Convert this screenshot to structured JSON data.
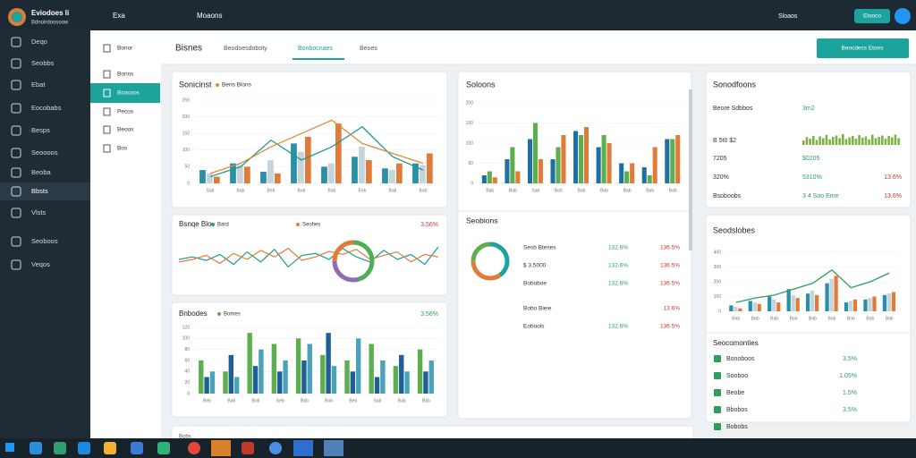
{
  "topbar": {
    "app_name": "Eviodoes li",
    "app_sub": "Bdnolrdoosoow",
    "menu1": "Exa",
    "menu2": "Moaons",
    "user": "Sloaos",
    "button": "Elooco"
  },
  "sidebar": {
    "items": [
      "Deqo",
      "Seobbs",
      "Ebat",
      "Eocobabs",
      "Besps",
      "Seoooos",
      "Beoba",
      "Bbsts",
      "Vlsts",
      "Seoboos",
      "Veqos"
    ],
    "active": 7
  },
  "subnav": {
    "items": [
      "Bonor",
      "Bonos",
      "Bcocoos",
      "Pecos",
      "Beoos",
      "Bos"
    ],
    "active": 2
  },
  "header": {
    "title": "Bisnes",
    "tabs": [
      "Beodoesdoboty",
      "Bonbocnaes",
      "Beoes"
    ],
    "active_tab": 1,
    "button": "Beocdecs Etons"
  },
  "card_a": {
    "title": "Sonicinst",
    "chart": {
      "type": "bar",
      "ylim": [
        0,
        250
      ],
      "yticks": [
        0,
        50,
        100,
        150,
        200,
        250
      ],
      "categories": [
        "Sab",
        "Bab",
        "Beb",
        "Bob",
        "Bab",
        "Eeb",
        "Bab",
        "Bab"
      ],
      "series": [
        {
          "color": "#2a8fa8",
          "values": [
            40,
            60,
            35,
            120,
            50,
            80,
            45,
            60
          ]
        },
        {
          "color": "#c5d3dc",
          "values": [
            30,
            55,
            70,
            95,
            60,
            110,
            40,
            55
          ]
        },
        {
          "color": "#e07b39",
          "values": [
            20,
            50,
            30,
            140,
            180,
            70,
            60,
            90
          ]
        }
      ],
      "lines": [
        {
          "color": "#1f9a8e",
          "values": [
            20,
            50,
            130,
            70,
            110,
            170,
            80,
            40
          ]
        },
        {
          "name": "Bens Blons",
          "color": "#e08a3a",
          "values": [
            30,
            60,
            110,
            150,
            190,
            120,
            90,
            60
          ]
        }
      ]
    }
  },
  "card_b": {
    "title": "Bsnqe Blo",
    "legend": [
      "Bard",
      "Seohes"
    ],
    "badge": "3.56%",
    "chart": {
      "type": "line",
      "ylim": [
        0,
        100
      ],
      "lines": [
        {
          "color": "#1f9a8e",
          "values": [
            50,
            55,
            48,
            60,
            40,
            65,
            45,
            70,
            35,
            58,
            62,
            50,
            72,
            55,
            45,
            68,
            50,
            60,
            40,
            75
          ]
        },
        {
          "color": "#e07b39",
          "values": [
            45,
            50,
            58,
            42,
            62,
            50,
            68,
            55,
            72,
            48,
            55,
            66,
            60,
            70,
            50,
            58,
            65,
            45,
            60,
            55
          ]
        }
      ]
    },
    "donut": {
      "values": [
        45,
        30,
        25
      ],
      "colors": [
        "#4caf50",
        "#8e6fb5",
        "#e07b39"
      ]
    }
  },
  "card_c": {
    "title": "Bnbodes",
    "legend": "Bomes",
    "badge": "3.56%",
    "chart": {
      "type": "bar",
      "ylim": [
        0,
        120
      ],
      "yticks": [
        0,
        20,
        40,
        60,
        80,
        100,
        120
      ],
      "categories": [
        "Beb",
        "Bab",
        "Bob",
        "Seb",
        "Bab",
        "Bob",
        "Beb",
        "Sab",
        "Bab",
        "Bab"
      ],
      "series": [
        {
          "color": "#5cae4f",
          "values": [
            60,
            40,
            110,
            90,
            100,
            70,
            60,
            90,
            50,
            80
          ]
        },
        {
          "color": "#1f5f95",
          "values": [
            30,
            70,
            50,
            40,
            60,
            110,
            40,
            30,
            70,
            40
          ]
        },
        {
          "color": "#4aa3b8",
          "values": [
            40,
            30,
            80,
            60,
            90,
            50,
            100,
            60,
            40,
            60
          ]
        }
      ]
    }
  },
  "card_d": {
    "title": "Soloons",
    "chart": {
      "type": "bar",
      "ylim": [
        0,
        200
      ],
      "yticks": [
        0,
        50,
        100,
        150,
        200
      ],
      "categories": [
        "Bab",
        "Bab",
        "Sab",
        "Bob",
        "Bab",
        "Bab",
        "Bab",
        "Bab",
        "Bab"
      ],
      "series": [
        {
          "color": "#1f6fa5",
          "values": [
            20,
            60,
            110,
            60,
            130,
            90,
            50,
            40,
            110
          ]
        },
        {
          "color": "#5cae4f",
          "values": [
            30,
            90,
            150,
            90,
            120,
            120,
            30,
            20,
            110
          ]
        },
        {
          "color": "#e07b39",
          "values": [
            15,
            30,
            60,
            120,
            140,
            100,
            50,
            90,
            120
          ]
        }
      ]
    },
    "list_title": "Seobions",
    "donut": {
      "values": [
        40,
        35,
        25
      ],
      "colors": [
        "#1ba39c",
        "#e07b39",
        "#5cae4f"
      ]
    },
    "rows": [
      [
        "Sesb Bteses",
        "132.6%",
        "136.5%"
      ],
      [
        "$ 3.5000",
        "132.6%",
        "136.5%"
      ],
      [
        "Boboboe",
        "132.6%",
        "136.5%"
      ],
      [
        "Bobo Bieie",
        "",
        "13.6%"
      ],
      [
        "Eobools",
        "132.6%",
        "136.5%"
      ]
    ]
  },
  "card_e": {
    "title": "Sonodfoons",
    "rows": [
      [
        "Beore Sdbbos",
        "3m2"
      ],
      [
        "B 5t0 $2",
        ""
      ],
      [
        "7205",
        "$0205"
      ],
      [
        "320%",
        "5310%",
        "13.6%"
      ],
      [
        "Bsoboobs",
        "3 4 Soo Eme",
        "13.6%"
      ]
    ],
    "spark": {
      "color": "#7cb342",
      "values": [
        20,
        35,
        28,
        40,
        22,
        38,
        30,
        45,
        25,
        36,
        42,
        30,
        48,
        26,
        34,
        40,
        28,
        44,
        32,
        38,
        24,
        46,
        30,
        36,
        42,
        28,
        40,
        34,
        46,
        30
      ]
    }
  },
  "card_f": {
    "title": "Seodslobes",
    "chart": {
      "type": "bar",
      "ylim": [
        0,
        400
      ],
      "yticks": [
        0,
        100,
        200,
        300,
        400
      ],
      "categories": [
        "Bab",
        "Bab",
        "Bab",
        "Bob",
        "Bab",
        "Bab",
        "Bob",
        "Bab",
        "Bab"
      ],
      "series": [
        {
          "color": "#2a8fa8",
          "values": [
            40,
            70,
            100,
            150,
            120,
            190,
            60,
            80,
            110
          ]
        },
        {
          "color": "#c5d3dc",
          "values": [
            30,
            60,
            80,
            110,
            140,
            220,
            70,
            90,
            120
          ]
        },
        {
          "color": "#e07b39",
          "values": [
            20,
            50,
            60,
            90,
            110,
            240,
            80,
            100,
            130
          ]
        }
      ],
      "lines": [
        {
          "color": "#2e9e5b",
          "values": [
            60,
            90,
            110,
            150,
            190,
            280,
            160,
            200,
            260
          ]
        }
      ]
    },
    "list_title": "Seocomonties",
    "rows": [
      [
        "Bonoboos",
        "3.5%"
      ],
      [
        "Sooboo",
        "1.05%"
      ],
      [
        "Beobe",
        "1.5%"
      ],
      [
        "Bbobos",
        "3.5%"
      ],
      [
        "Bobobs",
        ""
      ]
    ]
  },
  "card_g": {
    "title": "Bobs"
  }
}
